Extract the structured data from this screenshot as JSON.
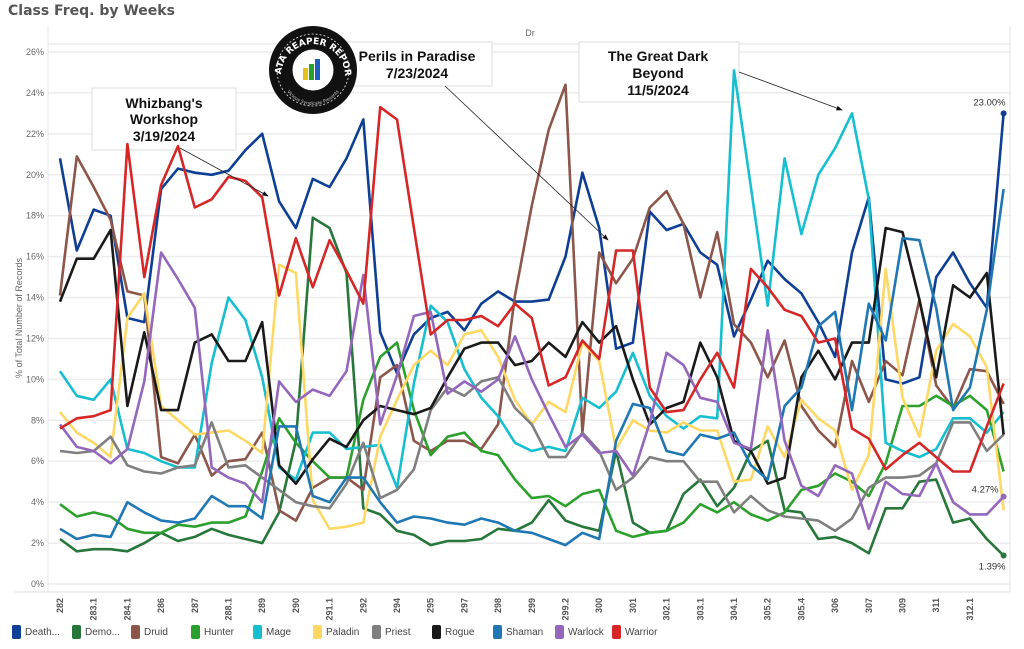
{
  "title": "Class Freq. by Weeks",
  "column_header": "Dr",
  "logo": {
    "text": "DATA REAPER REPORT",
    "subtext": "Vicious Syndicate Presents"
  },
  "annotations": [
    {
      "lines": [
        "Whizbang's",
        "Workshop",
        "3/19/2024"
      ]
    },
    {
      "lines": [
        "Perils in Paradise",
        "7/23/2024"
      ]
    },
    {
      "lines": [
        "The Great Dark",
        "Beyond",
        "11/5/2024"
      ]
    }
  ],
  "chart_data": {
    "type": "line",
    "title": "Class Freq. by Weeks",
    "xlabel": "",
    "ylabel": "% of Total Number of Records",
    "ylim": [
      0,
      26
    ],
    "yticks": [
      "0%",
      "2%",
      "4%",
      "6%",
      "8%",
      "10%",
      "12%",
      "14%",
      "16%",
      "18%",
      "20%",
      "22%",
      "24%",
      "26%"
    ],
    "grid": true,
    "legend_position": "bottom",
    "categories": [
      "282",
      "",
      "283.1",
      "",
      "284.1",
      "",
      "286",
      "",
      "287",
      "",
      "288.1",
      "",
      "289",
      "",
      "290",
      "",
      "291.1",
      "",
      "292",
      "",
      "294",
      "",
      "295",
      "",
      "297",
      "",
      "298",
      "",
      "299",
      "",
      "299.2",
      "",
      "300",
      "",
      "301",
      "",
      "302.1",
      "",
      "303.1",
      "",
      "304.1",
      "",
      "305.2",
      "",
      "305.4",
      "",
      "306",
      "",
      "307",
      "",
      "309",
      "",
      "311",
      "",
      "312.1",
      "",
      ""
    ],
    "series": [
      {
        "name": "Death...",
        "color": "#0e3f94",
        "values": [
          20.8,
          16.3,
          18.3,
          18.0,
          13.0,
          12.8,
          19.3,
          20.3,
          20.1,
          20.0,
          20.2,
          21.2,
          22.0,
          18.7,
          17.4,
          19.8,
          19.4,
          20.8,
          22.7,
          12.3,
          10.3,
          12.2,
          13.0,
          13.3,
          12.4,
          13.7,
          14.3,
          13.8,
          13.8,
          13.9,
          16.0,
          20.1,
          17.4,
          11.5,
          11.8,
          18.2,
          17.3,
          17.6,
          16.2,
          15.6,
          12.1,
          13.9,
          15.8,
          14.9,
          14.2,
          12.8,
          11.1,
          16.2,
          18.9,
          10.0,
          9.8,
          10.1,
          15.0,
          16.2,
          14.7,
          13.5,
          23.0
        ]
      },
      {
        "name": "Demo...",
        "color": "#27763a",
        "values": [
          2.2,
          1.6,
          1.7,
          1.7,
          1.6,
          2.0,
          2.5,
          2.1,
          2.3,
          2.7,
          2.4,
          2.2,
          2.0,
          3.5,
          7.0,
          17.9,
          17.4,
          15.2,
          3.7,
          3.4,
          2.6,
          2.4,
          1.9,
          2.1,
          2.1,
          2.2,
          2.7,
          2.6,
          3.0,
          4.1,
          3.1,
          2.8,
          2.6,
          6.5,
          3.0,
          2.5,
          2.6,
          4.4,
          5.1,
          3.8,
          4.7,
          6.5,
          7.0,
          3.6,
          3.5,
          2.2,
          2.3,
          2.0,
          1.5,
          3.7,
          3.7,
          5.0,
          5.1,
          3.0,
          3.2,
          2.2,
          1.39
        ]
      },
      {
        "name": "Druid",
        "color": "#8c564b",
        "values": [
          14.1,
          20.9,
          19.4,
          17.8,
          14.3,
          14.1,
          6.2,
          5.9,
          7.3,
          5.3,
          6.0,
          6.1,
          7.4,
          3.6,
          3.1,
          4.7,
          5.2,
          5.2,
          4.6,
          10.1,
          10.7,
          7.0,
          6.5,
          7.0,
          7.0,
          6.6,
          7.8,
          14.1,
          18.5,
          22.2,
          24.4,
          7.4,
          16.2,
          14.7,
          15.9,
          18.4,
          19.2,
          17.6,
          14.0,
          17.2,
          12.7,
          11.8,
          10.1,
          11.9,
          8.7,
          7.5,
          6.7,
          10.9,
          8.9,
          10.9,
          10.2,
          13.9,
          9.7,
          8.6,
          10.5,
          10.4,
          8.8
        ]
      },
      {
        "name": "Hunter",
        "color": "#2ca02c",
        "values": [
          3.9,
          3.3,
          3.5,
          3.3,
          2.7,
          2.5,
          2.5,
          2.9,
          2.8,
          3.0,
          3.0,
          3.3,
          5.5,
          8.1,
          6.9,
          6.0,
          5.2,
          5.2,
          9.0,
          11.1,
          11.8,
          8.5,
          6.3,
          7.2,
          7.4,
          6.5,
          6.3,
          5.1,
          4.2,
          4.3,
          3.8,
          4.4,
          4.6,
          2.6,
          2.3,
          2.5,
          2.6,
          3.0,
          3.9,
          3.5,
          4.0,
          3.4,
          3.1,
          3.5,
          4.6,
          4.8,
          5.4,
          5.0,
          4.3,
          5.9,
          8.7,
          8.7,
          9.2,
          8.7,
          9.2,
          8.5,
          5.5
        ]
      },
      {
        "name": "Mage",
        "color": "#17becf",
        "values": [
          10.4,
          9.2,
          9.0,
          10.0,
          6.6,
          6.4,
          6.0,
          5.7,
          5.7,
          10.8,
          14.0,
          12.9,
          10.1,
          5.7,
          5.1,
          7.4,
          7.4,
          6.6,
          6.7,
          6.8,
          4.7,
          9.8,
          13.6,
          12.8,
          10.5,
          9.1,
          8.2,
          6.9,
          6.5,
          6.7,
          6.5,
          9.1,
          8.6,
          9.4,
          11.3,
          9.2,
          8.2,
          7.6,
          8.2,
          8.1,
          25.1,
          19.4,
          13.6,
          20.8,
          17.1,
          20.0,
          21.3,
          23.0,
          18.8,
          6.9,
          6.5,
          6.2,
          6.6,
          8.1,
          8.1,
          7.4,
          8.4
        ]
      },
      {
        "name": "Paladin",
        "color": "#fdd865",
        "values": [
          8.4,
          7.4,
          6.9,
          6.2,
          13.0,
          14.2,
          8.7,
          8.0,
          7.3,
          7.4,
          7.5,
          7.0,
          6.4,
          15.6,
          15.2,
          4.1,
          2.7,
          2.8,
          3.0,
          7.2,
          9.0,
          10.7,
          11.4,
          10.7,
          12.2,
          12.4,
          11.1,
          9.0,
          7.8,
          8.9,
          8.4,
          11.8,
          10.9,
          6.6,
          8.0,
          7.5,
          7.4,
          7.9,
          7.5,
          7.5,
          5.0,
          5.1,
          7.7,
          6.2,
          9.0,
          8.1,
          7.5,
          4.6,
          6.3,
          15.4,
          9.1,
          7.2,
          11.4,
          12.7,
          12.1,
          10.6,
          3.6
        ]
      },
      {
        "name": "Priest",
        "color": "#7f7f7f",
        "values": [
          6.5,
          6.4,
          6.5,
          7.2,
          5.8,
          5.5,
          5.4,
          5.7,
          5.8,
          7.9,
          5.7,
          5.8,
          5.2,
          4.6,
          4.0,
          3.8,
          3.7,
          4.9,
          6.9,
          4.2,
          4.6,
          5.6,
          8.5,
          9.6,
          9.2,
          9.9,
          10.1,
          8.6,
          7.8,
          6.2,
          6.2,
          7.4,
          6.5,
          4.6,
          5.2,
          6.2,
          6.0,
          6.0,
          5.0,
          5.0,
          3.5,
          4.3,
          3.6,
          3.3,
          3.2,
          3.1,
          2.6,
          3.2,
          4.7,
          5.2,
          5.2,
          5.3,
          5.9,
          7.9,
          7.9,
          6.5,
          7.3
        ]
      },
      {
        "name": "Rogue",
        "color": "#1a1a1a",
        "values": [
          13.8,
          15.9,
          15.9,
          17.3,
          8.7,
          12.3,
          8.5,
          8.5,
          11.8,
          12.2,
          10.9,
          10.9,
          12.8,
          5.8,
          4.9,
          6.1,
          7.1,
          6.7,
          8.0,
          8.7,
          8.5,
          8.3,
          8.6,
          10.1,
          11.5,
          11.8,
          11.8,
          10.7,
          10.9,
          11.8,
          11.1,
          12.8,
          11.8,
          12.6,
          10.0,
          7.8,
          8.6,
          8.9,
          11.8,
          10.1,
          7.0,
          6.5,
          4.9,
          5.2,
          10.1,
          11.4,
          10.0,
          11.8,
          11.8,
          17.4,
          17.2,
          13.9,
          10.1,
          14.6,
          14.0,
          15.2,
          7.3
        ]
      },
      {
        "name": "Shaman",
        "color": "#1f77b4",
        "values": [
          2.7,
          2.2,
          2.4,
          2.3,
          4.0,
          3.5,
          3.1,
          3.0,
          3.2,
          4.3,
          3.8,
          3.8,
          3.2,
          7.7,
          7.7,
          4.3,
          4.0,
          5.2,
          5.2,
          4.0,
          3.0,
          3.3,
          3.2,
          3.0,
          2.9,
          3.2,
          3.0,
          2.6,
          2.5,
          2.2,
          1.9,
          2.5,
          2.2,
          7.0,
          8.8,
          8.6,
          6.5,
          6.3,
          7.3,
          7.1,
          7.4,
          5.8,
          5.1,
          8.7,
          9.6,
          12.6,
          13.3,
          8.5,
          13.7,
          11.9,
          16.9,
          16.8,
          13.5,
          8.5,
          9.6,
          13.4,
          19.3
        ]
      },
      {
        "name": "Warlock",
        "color": "#9467bd",
        "values": [
          7.8,
          6.7,
          6.5,
          5.9,
          6.6,
          9.9,
          16.2,
          14.9,
          13.5,
          5.7,
          5.2,
          4.9,
          4.0,
          9.9,
          8.9,
          9.5,
          9.2,
          10.4,
          15.1,
          7.8,
          10.2,
          13.1,
          13.3,
          9.3,
          9.9,
          9.4,
          10.0,
          12.1,
          10.0,
          8.3,
          6.7,
          7.3,
          6.4,
          6.5,
          5.3,
          7.9,
          11.3,
          10.7,
          9.1,
          8.9,
          6.9,
          6.6,
          12.4,
          7.0,
          4.8,
          4.3,
          5.8,
          5.4,
          2.7,
          5.0,
          4.4,
          4.3,
          5.9,
          4.0,
          3.4,
          3.4,
          4.27
        ]
      },
      {
        "name": "Warrior",
        "color": "#d62728",
        "values": [
          7.6,
          8.1,
          8.2,
          8.5,
          21.5,
          15.0,
          19.5,
          21.4,
          18.4,
          18.8,
          19.9,
          19.7,
          18.9,
          14.1,
          16.9,
          14.5,
          16.8,
          15.3,
          13.7,
          23.3,
          22.7,
          17.4,
          12.2,
          12.9,
          12.9,
          13.1,
          12.6,
          13.7,
          13.0,
          9.7,
          10.1,
          11.9,
          11.0,
          16.3,
          16.3,
          9.6,
          8.4,
          8.5,
          10.0,
          11.3,
          9.6,
          15.4,
          14.5,
          13.4,
          13.1,
          11.8,
          12.0,
          7.6,
          7.1,
          5.6,
          6.3,
          6.9,
          6.2,
          5.5,
          5.5,
          7.7,
          9.8
        ]
      }
    ],
    "data_labels": [
      {
        "series": "Death...",
        "text": "23.00%"
      },
      {
        "series": "Warlock",
        "text": "4.27%"
      },
      {
        "series": "Demo...",
        "text": "1.39%"
      }
    ]
  }
}
